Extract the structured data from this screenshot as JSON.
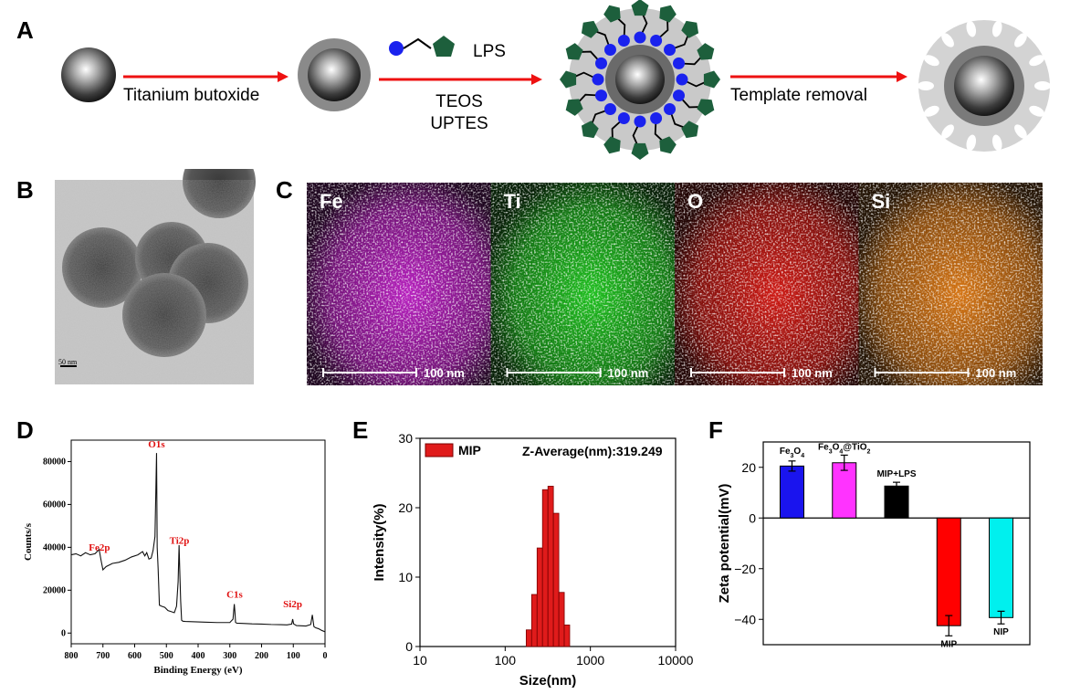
{
  "panels": {
    "A": {
      "letter": "A",
      "step1": "Titanium butoxide",
      "lps_label": "LPS",
      "reagent1": "TEOS",
      "reagent2": "UPTES",
      "step3": "Template removal"
    },
    "B": {
      "letter": "B",
      "scale_label": "50 nm"
    },
    "C": {
      "letter": "C",
      "maps": [
        {
          "element": "Fe",
          "scale": "100 nm",
          "color": "#c020c8"
        },
        {
          "element": "Ti",
          "scale": "100 nm",
          "color": "#1fc81f"
        },
        {
          "element": "O",
          "scale": "100 nm",
          "color": "#d81a14"
        },
        {
          "element": "Si",
          "scale": "100 nm",
          "color": "#e07a14"
        }
      ]
    },
    "D": {
      "letter": "D"
    },
    "E": {
      "letter": "E",
      "legend": "MIP",
      "annotation": "Z-Average(nm):319.249"
    },
    "F": {
      "letter": "F"
    }
  },
  "chart_data": [
    {
      "panel": "D",
      "type": "line",
      "xlabel": "Binding Energy (eV)",
      "ylabel": "Counts/s",
      "xlim": [
        800,
        0
      ],
      "ylim": [
        -5000,
        90000
      ],
      "xticks": [
        "800",
        "700",
        "600",
        "500",
        "400",
        "300",
        "200",
        "100",
        "0"
      ],
      "yticks": [
        "0",
        "20000",
        "40000",
        "60000",
        "80000"
      ],
      "peak_labels": [
        {
          "label": "O1s",
          "x": 531,
          "y": 84000
        },
        {
          "label": "Fe2p",
          "x": 711,
          "y": 36000
        },
        {
          "label": "Ti2p",
          "x": 459,
          "y": 39000
        },
        {
          "label": "C1s",
          "x": 285,
          "y": 14000
        },
        {
          "label": "Si2p",
          "x": 102,
          "y": 9500
        }
      ],
      "x": [
        800,
        785,
        770,
        755,
        740,
        725,
        712,
        706,
        700,
        690,
        670,
        650,
        630,
        610,
        590,
        575,
        568,
        562,
        555,
        548,
        542,
        536,
        533,
        531,
        529,
        526,
        522,
        515,
        505,
        495,
        485,
        475,
        468,
        463,
        460,
        458,
        455,
        452,
        448,
        440,
        420,
        380,
        340,
        300,
        290,
        286,
        284,
        282,
        278,
        260,
        230,
        200,
        170,
        140,
        120,
        105,
        102,
        99,
        90,
        75,
        60,
        45,
        40,
        35,
        30,
        20,
        10,
        0
      ],
      "y": [
        36500,
        37000,
        36000,
        37500,
        36500,
        37000,
        39000,
        34000,
        29500,
        31000,
        32500,
        33000,
        34000,
        35500,
        36500,
        38000,
        36000,
        37500,
        34500,
        35000,
        38500,
        45000,
        68000,
        84000,
        40000,
        30000,
        13000,
        12500,
        12000,
        10500,
        10000,
        9500,
        12500,
        24000,
        41000,
        30000,
        15000,
        6000,
        5500,
        5400,
        5300,
        5100,
        4900,
        4900,
        6500,
        13500,
        10000,
        5000,
        4600,
        4500,
        4300,
        4200,
        4000,
        3900,
        3800,
        4200,
        6500,
        4300,
        3500,
        3400,
        3300,
        4000,
        8500,
        3000,
        2500,
        2000,
        1200,
        600
      ]
    },
    {
      "panel": "E",
      "type": "bar",
      "xlabel": "Size(nm)",
      "ylabel": "Intensity(%)",
      "xscale": "log",
      "xlim": [
        10,
        10000
      ],
      "ylim": [
        0,
        30
      ],
      "xticks": [
        "10",
        "100",
        "1000",
        "10000"
      ],
      "yticks": [
        "0",
        "10",
        "20",
        "30"
      ],
      "series": [
        {
          "name": "MIP",
          "x": [
            190,
            220,
            255,
            295,
            342,
            396,
            459,
            531
          ],
          "values": [
            2.4,
            7.5,
            14.2,
            22.6,
            23.1,
            19.2,
            7.8,
            3.1
          ]
        }
      ]
    },
    {
      "panel": "F",
      "type": "bar",
      "ylabel": "Zeta potential(mV)",
      "ylim": [
        -50,
        30
      ],
      "yticks": [
        "-40",
        "-20",
        "0",
        "20"
      ],
      "categories": [
        "Fe3O4",
        "Fe3O4@TiO2",
        "MIP+LPS",
        "MIP",
        "NIP"
      ],
      "values": [
        20.5,
        21.8,
        12.6,
        -42.5,
        -39.3
      ],
      "errors": [
        2.0,
        3.0,
        1.5,
        4.0,
        2.5
      ],
      "colors": [
        "#1a14ee",
        "#ff33ff",
        "#000000",
        "#ff0000",
        "#00f0ee"
      ]
    }
  ]
}
